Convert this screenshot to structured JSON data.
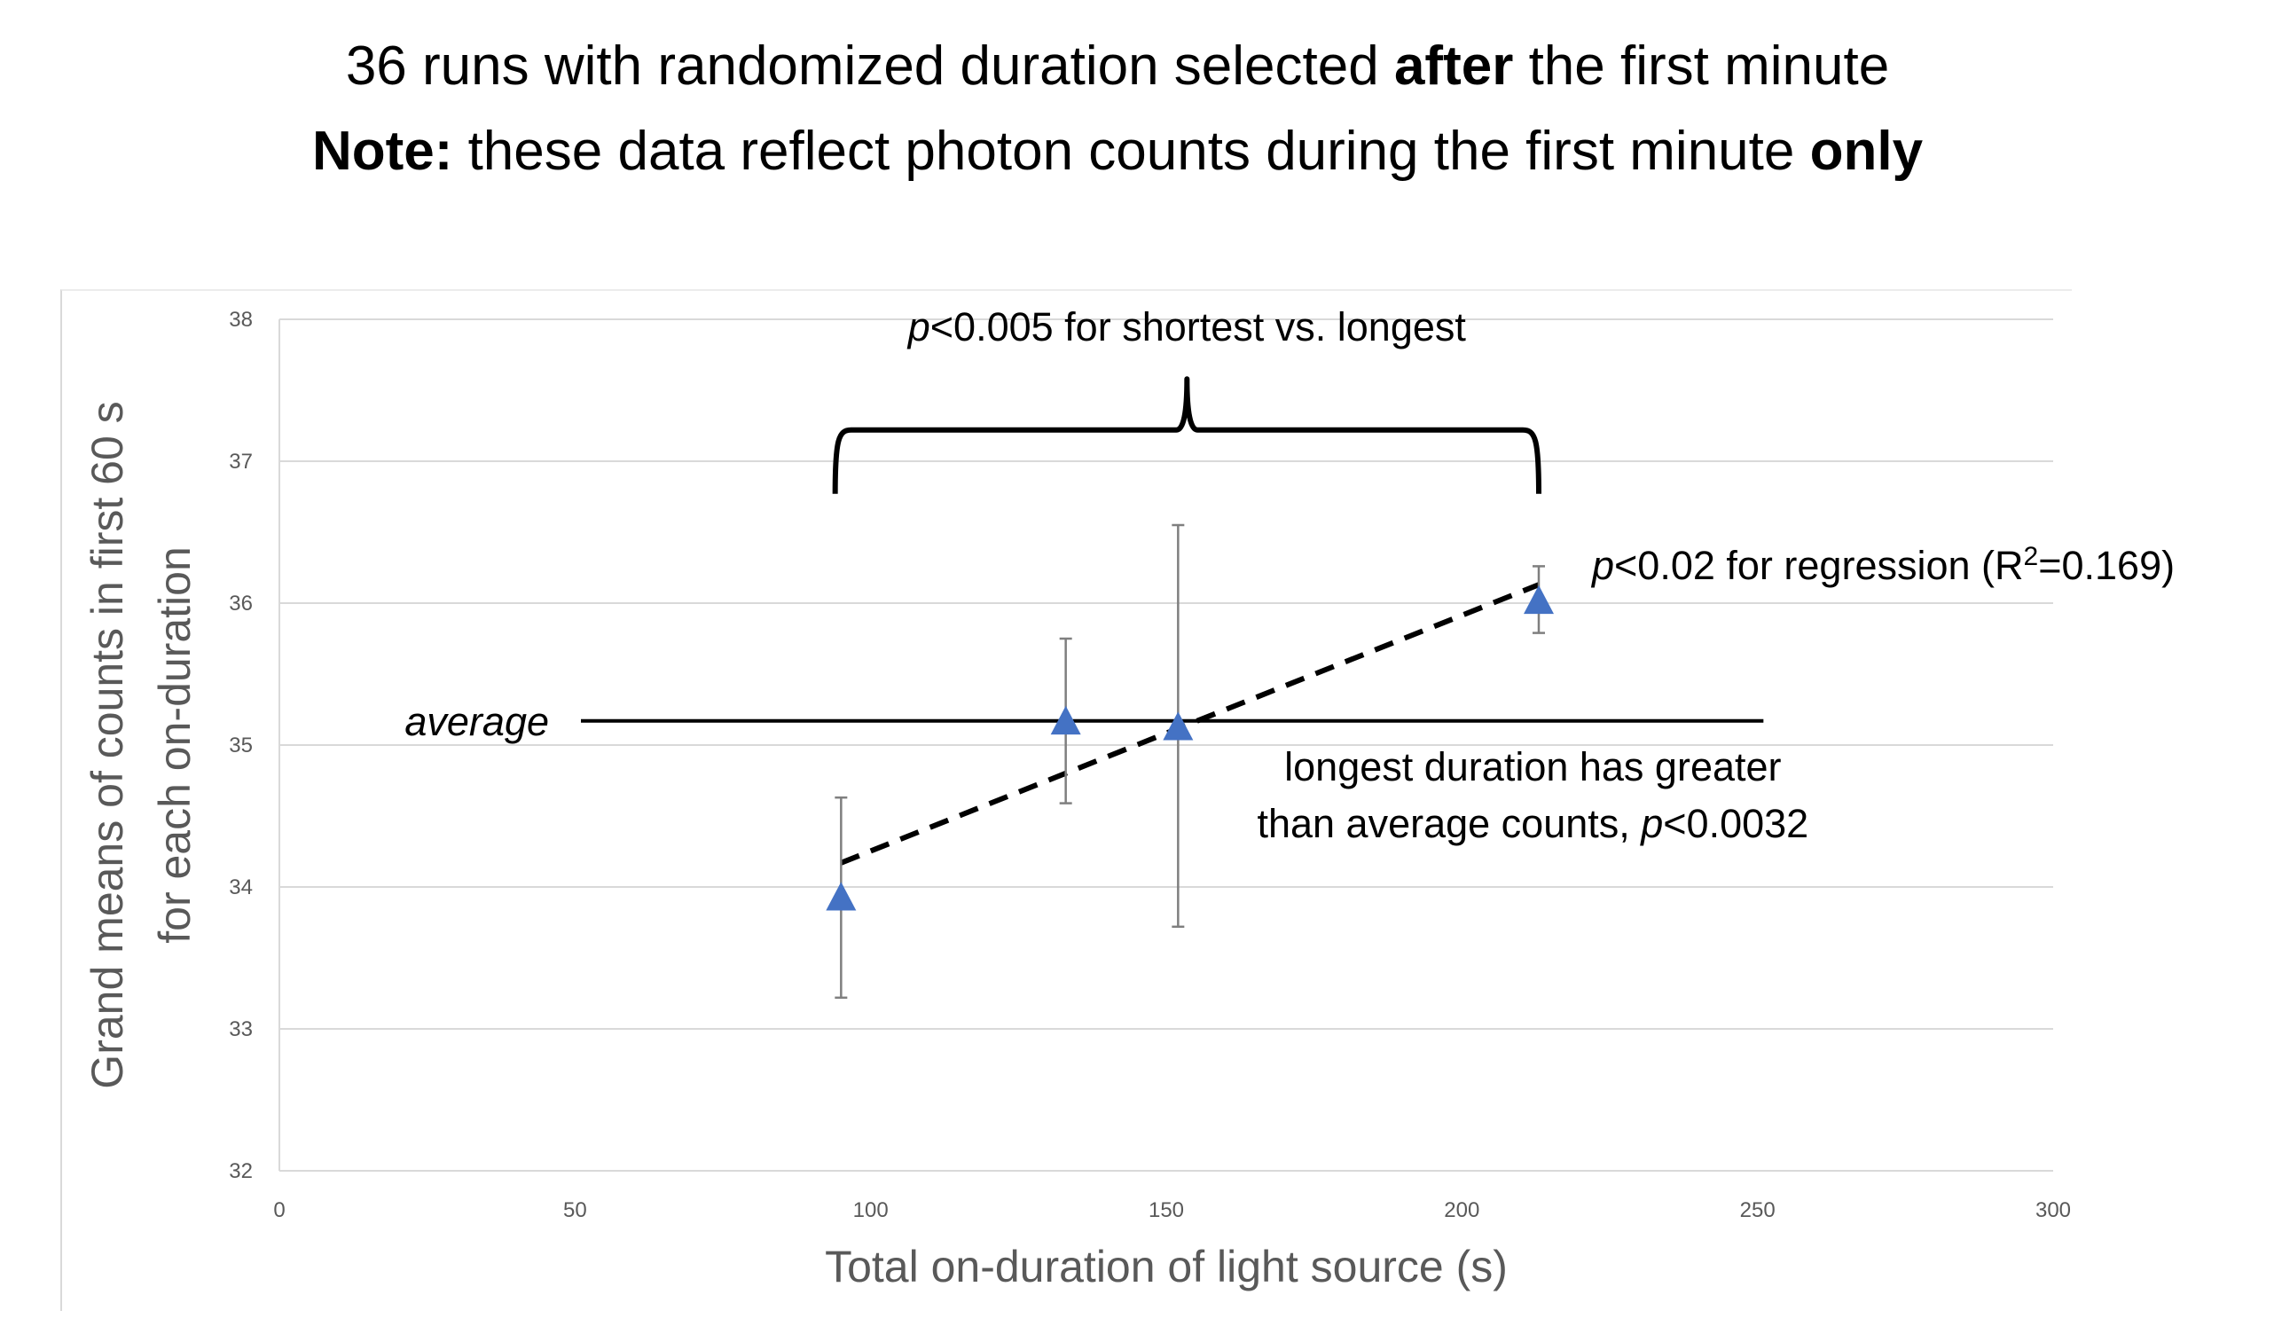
{
  "titles": {
    "line1": {
      "pre": "36 runs with randomized duration selected ",
      "bold": "after",
      "post": " the first minute"
    },
    "line2": {
      "bold1": "Note:",
      "mid": " these data reflect photon counts during the first minute ",
      "bold2": "only"
    }
  },
  "chart_data": {
    "type": "scatter",
    "xlabel": "Total on-duration of light source (s)",
    "ylabel_lines": [
      "Grand means of counts in first 60 s",
      "for each on-duration"
    ],
    "xlim": [
      0,
      300
    ],
    "ylim": [
      32,
      38
    ],
    "x_ticks": [
      0,
      50,
      100,
      150,
      200,
      250,
      300
    ],
    "y_ticks": [
      32,
      33,
      34,
      35,
      36,
      37,
      38
    ],
    "grid": true,
    "marker_color": "#4472c4",
    "series": [
      {
        "marker": "triangle",
        "points": [
          {
            "x": 95,
            "y": 33.93,
            "err_low": 33.22,
            "err_high": 34.63
          },
          {
            "x": 133,
            "y": 35.17,
            "err_low": 34.59,
            "err_high": 35.75
          },
          {
            "x": 152,
            "y": 35.13,
            "err_low": 33.72,
            "err_high": 36.55
          },
          {
            "x": 213,
            "y": 36.02,
            "err_low": 35.79,
            "err_high": 36.26
          }
        ]
      }
    ],
    "regression": {
      "style": "dashed",
      "x": [
        95,
        213
      ],
      "y": [
        34.17,
        36.13
      ]
    },
    "average_line": {
      "y": 35.17,
      "x": [
        51,
        251
      ]
    },
    "bracket": {
      "x": [
        94,
        213
      ],
      "y": 36.77,
      "peak_y": 37.58
    },
    "annotations": {
      "average": "average",
      "bracket": {
        "p": "p",
        "rest": "<0.005 for shortest vs. longest"
      },
      "regression": {
        "p": "p",
        "rest": "<0.02 for regression (R",
        "sup": "2",
        "tail": "=0.169)"
      },
      "longest_line1": "longest duration has greater",
      "longest_line2": {
        "pre": "than average counts, ",
        "p": "p",
        "post": "<0.0032"
      }
    }
  }
}
